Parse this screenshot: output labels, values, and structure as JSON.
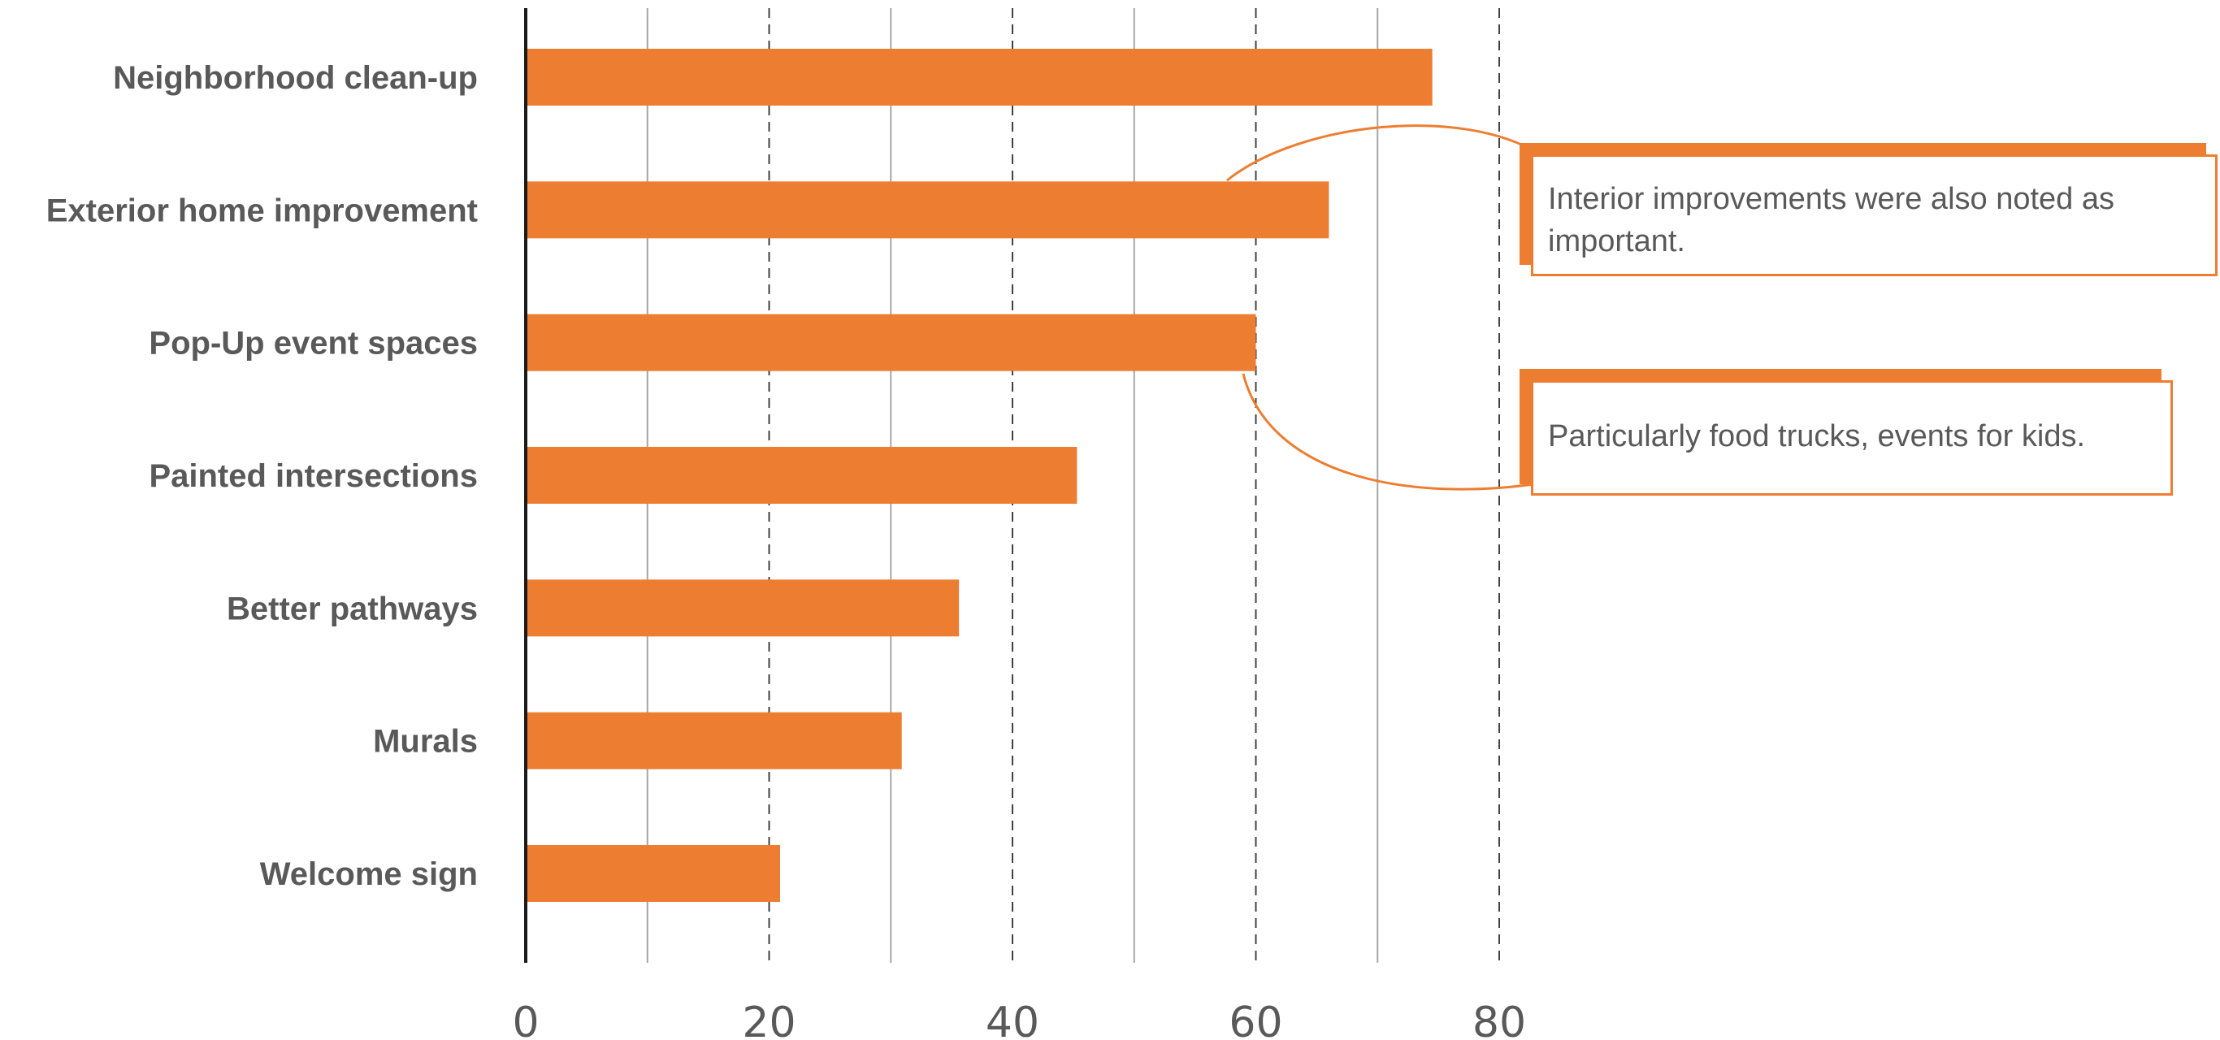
{
  "chart_data": {
    "type": "bar",
    "orientation": "horizontal",
    "categories": [
      "Neighborhood clean-up",
      "Exterior home improvement",
      "Pop-Up event spaces",
      "Painted intersections",
      "Better pathways",
      "Murals",
      "Welcome sign"
    ],
    "values": [
      74.5,
      66,
      60,
      45.3,
      35.6,
      30.9,
      20.9
    ],
    "xlim": [
      0,
      80
    ],
    "x_ticks": [
      0,
      20,
      40,
      60,
      80
    ],
    "gridlines_solid": [
      10,
      30,
      50,
      70
    ],
    "gridlines_dashed": [
      20,
      40,
      60,
      80
    ],
    "grid": true,
    "title": "",
    "xlabel": "",
    "ylabel": "",
    "bar_color": "#ed7d31",
    "annotations": [
      {
        "target": "Exterior home improvement",
        "text": "Interior improvements were also noted as important."
      },
      {
        "target": "Pop-Up event spaces",
        "text": "Particularly food trucks, events for kids."
      }
    ]
  }
}
